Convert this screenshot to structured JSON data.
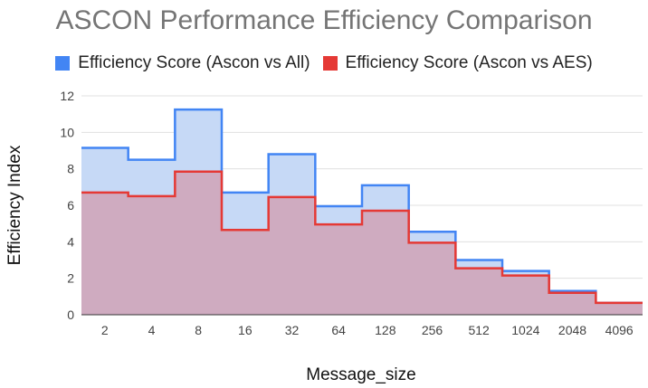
{
  "chart_data": {
    "type": "area",
    "title": "ASCON Performance Efficiency Comparison",
    "xlabel": "Message_size",
    "ylabel": "Efficiency Index",
    "categories": [
      "2",
      "4",
      "8",
      "16",
      "32",
      "64",
      "128",
      "256",
      "512",
      "1024",
      "2048",
      "4096"
    ],
    "ylim": [
      0,
      12
    ],
    "yticks": [
      0,
      2,
      4,
      6,
      8,
      10,
      12
    ],
    "grid": true,
    "legend_position": "top",
    "series": [
      {
        "name": "Efficiency Score (Ascon vs All)",
        "color": "#4285f4",
        "fill": "#c6d9f6",
        "values": [
          9.15,
          8.5,
          11.25,
          6.7,
          8.8,
          5.95,
          7.1,
          4.55,
          3.0,
          2.4,
          1.3,
          0.65
        ]
      },
      {
        "name": "Efficiency Score (Ascon vs AES)",
        "color": "#e53935",
        "fill": "#cfabc0",
        "values": [
          6.7,
          6.5,
          7.85,
          4.65,
          6.45,
          4.95,
          5.7,
          3.95,
          2.55,
          2.15,
          1.2,
          0.65
        ]
      }
    ]
  }
}
